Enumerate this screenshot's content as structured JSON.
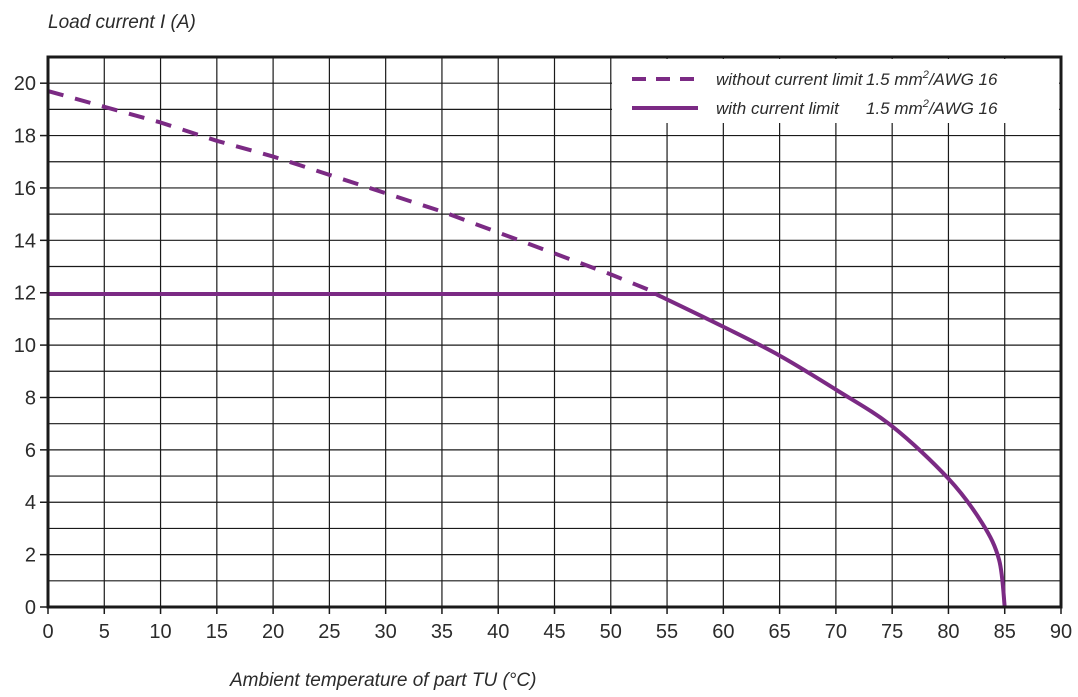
{
  "chart_data": {
    "type": "line",
    "title": "",
    "ylabel": "Load current I (A)",
    "xlabel": "Ambient temperature of part TU (°C)",
    "xlim": [
      0,
      90
    ],
    "ylim": [
      0,
      21
    ],
    "x_ticks": [
      0,
      5,
      10,
      15,
      20,
      25,
      30,
      35,
      40,
      45,
      50,
      55,
      60,
      65,
      70,
      75,
      80,
      85,
      90
    ],
    "y_ticks": [
      0,
      2,
      4,
      6,
      8,
      10,
      12,
      14,
      16,
      18,
      20
    ],
    "grid": true,
    "minor_y_grid": true,
    "legend_position": "top-right",
    "series": [
      {
        "name": "without current limit",
        "spec_prefix": "1.5 mm",
        "spec_sup": "2",
        "spec_suffix": "/AWG 16",
        "style": "dashed",
        "color": "#7b2a84",
        "points": [
          [
            0,
            19.7
          ],
          [
            5,
            19.1
          ],
          [
            10,
            18.5
          ],
          [
            15,
            17.8
          ],
          [
            20,
            17.2
          ],
          [
            25,
            16.5
          ],
          [
            30,
            15.8
          ],
          [
            35,
            15.1
          ],
          [
            40,
            14.3
          ],
          [
            45,
            13.5
          ],
          [
            50,
            12.7
          ],
          [
            54,
            12.0
          ]
        ]
      },
      {
        "name": "with current limit",
        "spec_prefix": "1.5 mm",
        "spec_sup": "2",
        "spec_suffix": "/AWG 16",
        "style": "solid",
        "color": "#7b2a84",
        "points": [
          [
            0,
            11.95
          ],
          [
            54,
            11.95
          ],
          [
            60,
            10.7
          ],
          [
            65,
            9.6
          ],
          [
            70,
            8.3
          ],
          [
            75,
            6.9
          ],
          [
            80,
            4.9
          ],
          [
            83,
            3.2
          ],
          [
            84.5,
            1.8
          ],
          [
            85,
            0
          ]
        ]
      }
    ]
  }
}
